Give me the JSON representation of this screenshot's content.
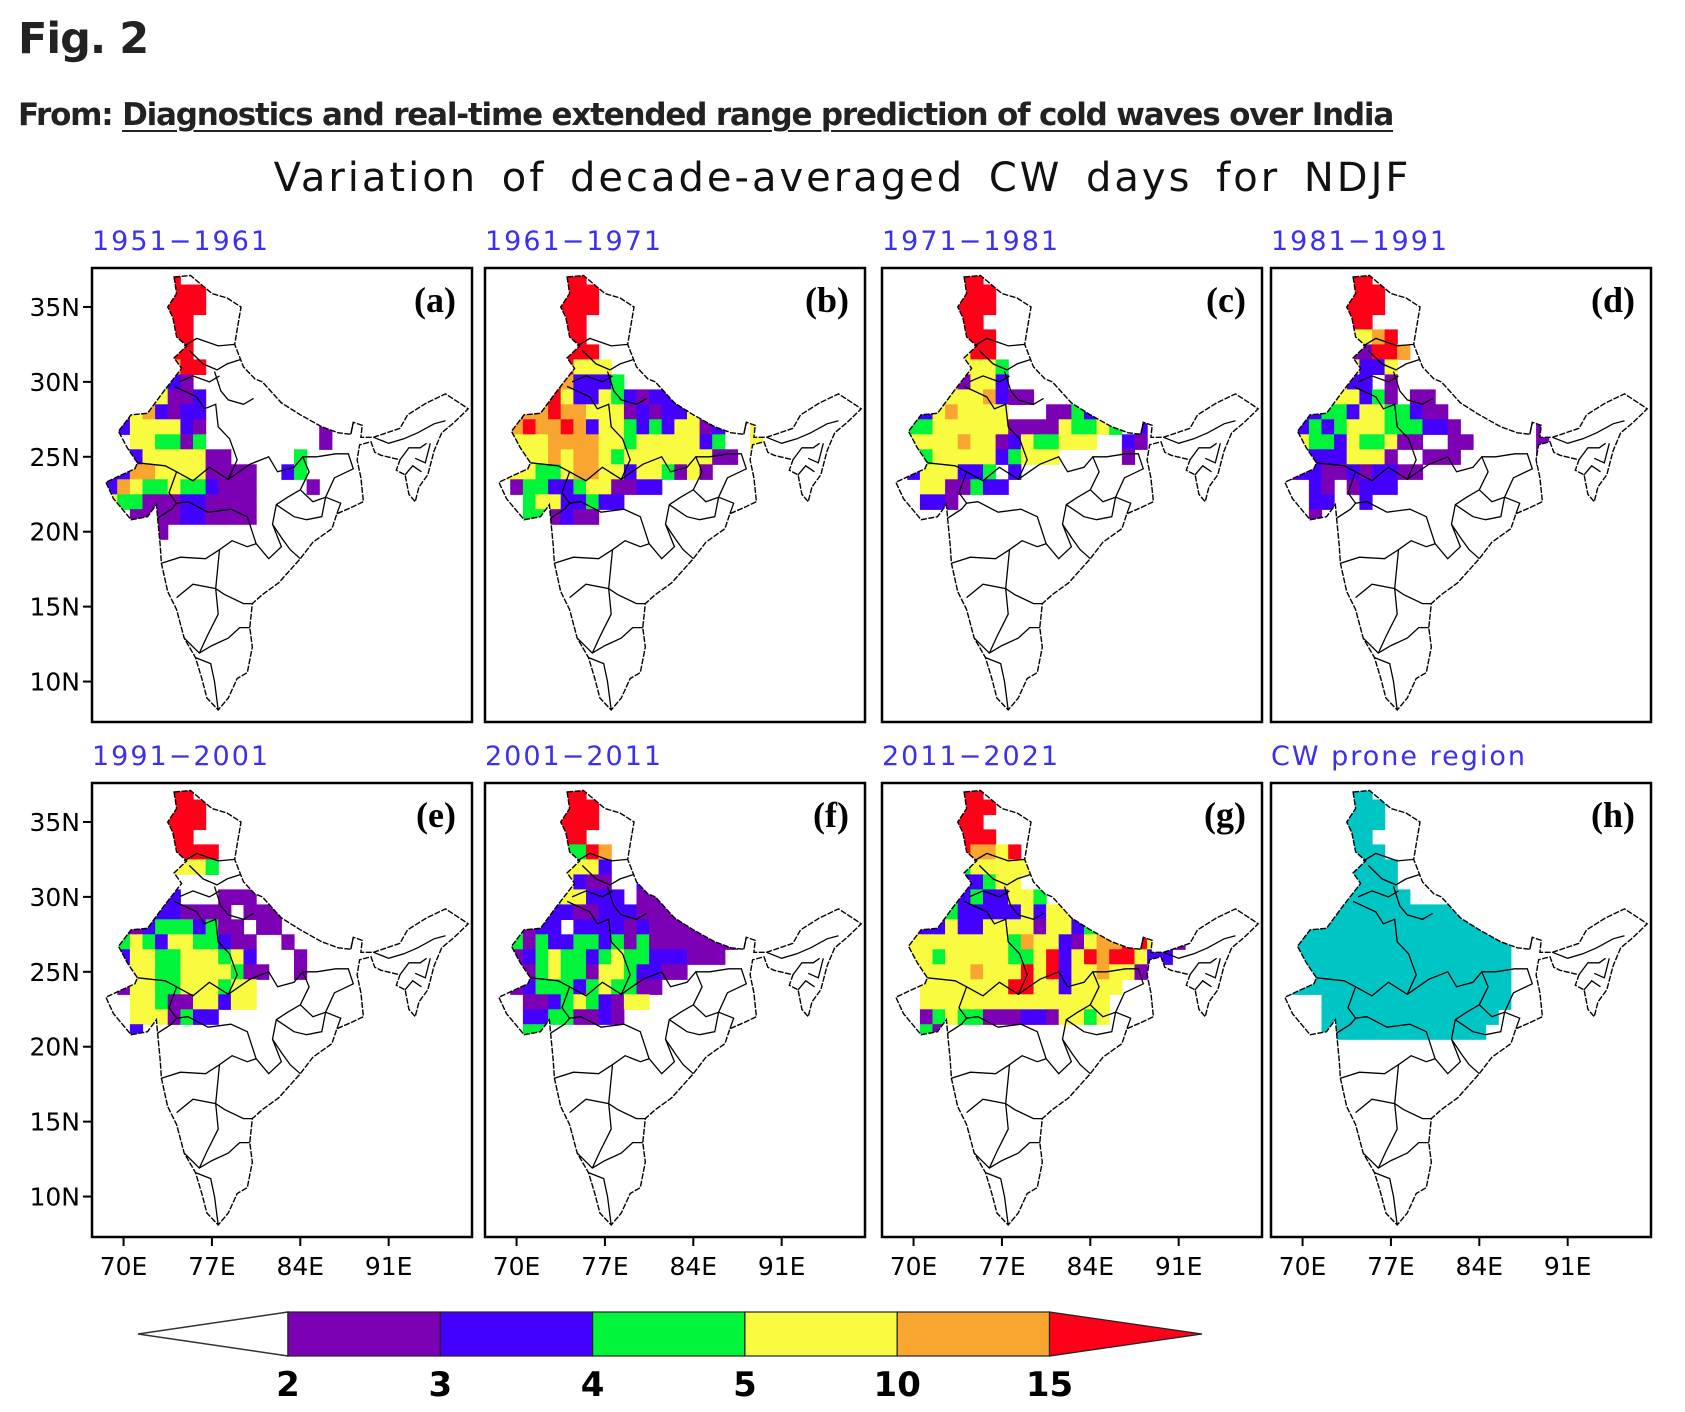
{
  "header": {
    "fig_label": "Fig. 2",
    "from_prefix": "From:",
    "article_title": "Diagnostics and real-time extended range prediction of cold waves over India"
  },
  "chart_data": {
    "type": "heatmap",
    "title": "Variation of decade-averaged CW days for NDJF",
    "xlabel": "",
    "ylabel": "",
    "x_ticks": [
      "70E",
      "77E",
      "84E",
      "91E"
    ],
    "x_tick_values": [
      70,
      77,
      84,
      91
    ],
    "y_ticks": [
      "35N",
      "30N",
      "25N",
      "20N",
      "15N",
      "10N"
    ],
    "y_tick_values": [
      35,
      30,
      25,
      20,
      15,
      10
    ],
    "lon_range": [
      67.5,
      97.6
    ],
    "lat_range": [
      7.3,
      37.6
    ],
    "grid": {
      "lon_start": 68,
      "lat_start": 37,
      "cell_deg": 1,
      "code_legend": {
        ".": "below 2",
        "p": "2-3",
        "b": "3-4",
        "g": "4-5",
        "y": "5-10",
        "o": "10-15",
        "r": "above 15",
        "c": "CW prone region"
      }
    },
    "colorbar": {
      "levels": [
        "2",
        "3",
        "4",
        "5",
        "10",
        "15"
      ],
      "bins": [
        {
          "range": "<2",
          "color": "#ffffff"
        },
        {
          "range": "2-3",
          "color": "#7c00b4"
        },
        {
          "range": "3-4",
          "color": "#4400ff"
        },
        {
          "range": "4-5",
          "color": "#00f53a"
        },
        {
          "range": "5-10",
          "color": "#f8fb40"
        },
        {
          "range": "10-15",
          "color": "#f9a631"
        },
        {
          "range": ">15",
          "color": "#ff0019"
        }
      ],
      "extend": "both",
      "placement": "bottom"
    },
    "panels": [
      {
        "letter": "(a)",
        "title": "1951−1961",
        "rows": [
          "...rrrr..................",
          "...rrrrrr................",
          "...rrrrrr................",
          "....rrrr.................",
          "...grrrr.................",
          "...rrrrr.................",
          "..rrpyorr................",
          ".rrrbgbp.................",
          "bbbooyppb................",
          "bbbyobpbb................",
          "..byyyybp.........p......",
          "...yyggpg.........p......",
          "..bbyyyyypp.....g........",
          "pbbooyyyypppp..bg........",
          "bboyggyggbppp....p.......",
          "byggpppbbpppp............",
          "...ppppbbpppp............",
          "...ppp...................",
          "........................."
        ]
      },
      {
        "letter": "(b)",
        "title": "1961−1971",
        "rows": [
          "...rrrrr.................",
          "...rrrrrr................",
          "...rrrrrr................",
          "...yrrrr.................",
          "...rrrrr.................",
          "..rrorrrr................",
          "..rrorryyy...............",
          "..orrrobbbg.........bbbp.",
          "yyoorrybbygbpbbb...bpbb..",
          "bppoorooyyypbpbbyyb.ppbg.",
          "yyoroorobyygbgbyypb..yy..",
          "gyyyyooooyygyyyyybg..y...",
          "gyyyyoyooygyyyyyyypp.....",
          "pyyyggyooyybyygpyp.......",
          "..pggbbgyyppbb...........",
          "...gyybbgbb..............",
          "...ggpbpp................",
          "...gp....................",
          "........................."
        ]
      },
      {
        "letter": "(c)",
        "title": "1971−1981",
        "rows": [
          "...rrrrr.................",
          "...rrrrrr................",
          "...rrrrrr................",
          "...yrrrr.................",
          "...rrrrrr................",
          "..rrooyrr................",
          "..rrryyyyg...............",
          "yyrryopyyb........pp.....",
          "yyyryyyyobpp....pbp.ppp..",
          "ppbbyoyyyy...ppgbp...pp..",
          "ppggyyyyyyppppyggyg.b....",
          "bgyyyyoyypbyggyyy..bp....",
          ".pggyyyyybgyyy.....p.....",
          "..byyybbg.b..............",
          "...yyppgbb...............",
          "...bbp...................",
          "......................g..",
          "........................."
        ]
      },
      {
        "letter": "(d)",
        "title": "1981−1991",
        "rows": [
          "...rrrrr.................",
          "...rrrrrr................",
          "...rrrrrr................",
          "...yrrrr.................",
          "...rrryyor...............",
          "..rrrppprro..............",
          "..rrryybby...........pppp",
          "yyyyyybb.p......b...pbppp",
          "yyyoyyybgp.pp...pp..bbpp.",
          "bppbggbyyggbpp.......ppp.",
          "pbbgbgyyygggbbp......pp..",
          "pbyggbyggypp..pp.....p...",
          "ppbbbbyyyp..ppp......p...",
          "ppbbppbpbbpp.............",
          "...bp.pbbb...............",
          "...bb..b.................",
          "...p.....................",
          "........................."
        ]
      },
      {
        "letter": "(e)",
        "title": "1991−2001",
        "rows": [
          "...rrrrr.................",
          "...rrrrrr................",
          "...rrrrrr................",
          "...yrrrr.................",
          "...rrrrrrr...............",
          "..oorpyyyg...............",
          "..yorg...................",
          "ppbpbpb...ppp.pp.........",
          "pbbppbbpppp.ppp..........",
          ".bbpbgggbgpp.pp..........",
          ".bgygbyyggbpp..p.........",
          ".bbyyggyyygyb...p........",
          "pp.yyggyyyygpp..p........",
          "..pyyggyyygyy............",
          "...yygppyybyy............",
          "...yyypgbb...............",
          "...b.....................",
          "........................."
        ]
      },
      {
        "letter": "(f)",
        "title": "2001−2011",
        "rows": [
          "...rrrrr.................",
          "...rrrrrr................",
          "...rrrrrr................",
          "...yrrrr.................",
          "...rroggro...............",
          "..oorryyyb...............",
          "..oogyybpp..b............",
          "bbbbggyybbb.pppp.........",
          "bbbpbbbppbbbppppppp......",
          "bbgpbb.bbbbpbppppppp.....",
          "bbgpgbbggbgpgppppppp.....",
          ".ppbgyggbgyggbbbppp......",
          ".pppgyggpyygbbpp.........",
          "p.pbgggbgyggpp...........",
          "...ppbgygbpyy............",
          "...bbggppbp..............",
          "...gg....................",
          "........................."
        ]
      },
      {
        "letter": "(g)",
        "title": "2011−2021",
        "rows": [
          "...rrrrr.................",
          "...r.rrrr................",
          "...orrrr.................",
          "...rrrrrr................",
          "...rrrrooyr..............",
          "..ooyrgyyyyy.............",
          "..pyyrbbgyy..........y...",
          "ppyyygbgbbyyg.pppp....pp.",
          ".ppyygbbbbbybyybbgppp....",
          "..pbbybbyyyypyybgpbbp....",
          "pgyyyyyyyygoyybpyoorrybp.",
          "pgyygyyyyyggyrbyrorrybb..",
          "p..yyyyoyyyryrbyyoyyp....",
          "p..yyyyyyyrryybyyyy......",
          "...yyyyyyyyyyyyyyy.......",
          "...pgyggpppbbpyygy.......",
          "...gp....................",
          "........................."
        ]
      },
      {
        "letter": "(h)",
        "title": "CW prone region",
        "rows": [
          "...ccccc.................",
          "...cccccc................",
          "...cccccc................",
          "...ccccc.................",
          "...cccccc................",
          "..cccccccc...............",
          "..cccccccc...............",
          ".cccccccccc..............",
          ".cccccccccccccc..........",
          ".cccccccccccccccccc......",
          ".cccccccccccccccccc......",
          ".cccccccccccccccccc......",
          ".cccccccccccccccccc......",
          ".cccccccccccccccccc......",
          "....ccccccccccccccc......",
          "....cccccccccccccc.......",
          "....ccccccccccccc........",
          "........................."
        ]
      }
    ]
  }
}
